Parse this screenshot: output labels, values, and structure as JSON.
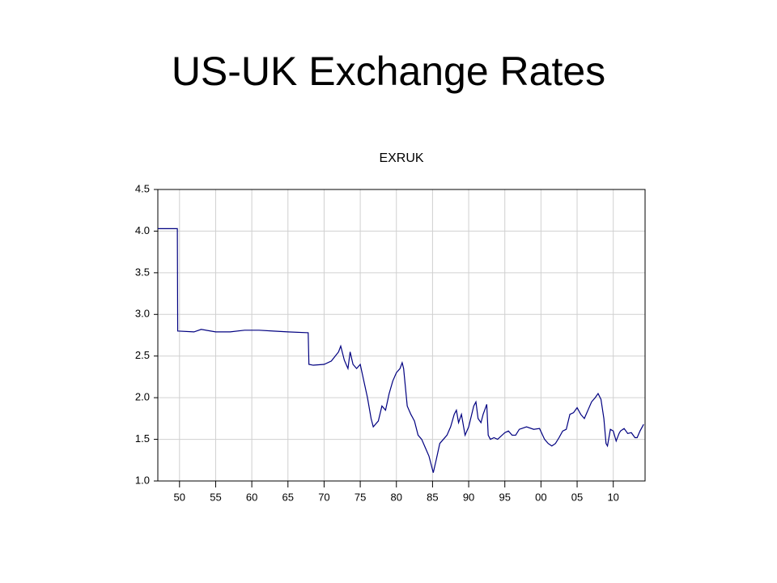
{
  "slide": {
    "title": "US-UK Exchange Rates"
  },
  "chart_data": {
    "type": "line",
    "title": "EXRUK",
    "x": [
      1947.0,
      1949.7,
      1949.75,
      1952,
      1953,
      1955,
      1957,
      1959,
      1961,
      1963,
      1965,
      1967.8,
      1967.9,
      1968.5,
      1970,
      1971,
      1972,
      1972.3,
      1972.8,
      1973.3,
      1973.6,
      1974,
      1974.5,
      1975,
      1975.5,
      1976,
      1976.5,
      1976.8,
      1977.5,
      1978,
      1978.5,
      1979,
      1979.5,
      1980,
      1980.5,
      1980.8,
      1981,
      1981.5,
      1982,
      1982.5,
      1983,
      1983.5,
      1984,
      1984.5,
      1985.1,
      1985.5,
      1986,
      1986.5,
      1987,
      1987.5,
      1988,
      1988.3,
      1988.6,
      1989,
      1989.5,
      1990,
      1990.7,
      1991,
      1991.3,
      1991.7,
      1992,
      1992.5,
      1992.7,
      1993,
      1993.5,
      1994,
      1995,
      1995.5,
      1996,
      1996.5,
      1997,
      1998,
      1999,
      1999.8,
      2000.5,
      2001,
      2001.5,
      2002,
      2002.5,
      2003,
      2003.5,
      2004,
      2004.5,
      2005,
      2005.5,
      2006,
      2006.5,
      2007,
      2007.5,
      2007.9,
      2008.3,
      2008.7,
      2009,
      2009.2,
      2009.6,
      2010,
      2010.4,
      2010.8,
      2011,
      2011.5,
      2012,
      2012.5,
      2013,
      2013.3,
      2013.7,
      2014.2
    ],
    "series": [
      {
        "name": "EXRUK",
        "color": "#000080",
        "values": [
          4.03,
          4.03,
          2.8,
          2.79,
          2.82,
          2.79,
          2.79,
          2.81,
          2.81,
          2.8,
          2.79,
          2.78,
          2.4,
          2.39,
          2.4,
          2.44,
          2.55,
          2.62,
          2.45,
          2.35,
          2.55,
          2.4,
          2.35,
          2.4,
          2.2,
          2.0,
          1.75,
          1.65,
          1.72,
          1.9,
          1.85,
          2.05,
          2.2,
          2.3,
          2.35,
          2.42,
          2.35,
          1.9,
          1.8,
          1.72,
          1.55,
          1.5,
          1.4,
          1.3,
          1.1,
          1.25,
          1.45,
          1.5,
          1.55,
          1.65,
          1.8,
          1.85,
          1.7,
          1.8,
          1.55,
          1.65,
          1.9,
          1.95,
          1.75,
          1.7,
          1.8,
          1.92,
          1.55,
          1.5,
          1.52,
          1.5,
          1.58,
          1.6,
          1.55,
          1.55,
          1.62,
          1.65,
          1.62,
          1.63,
          1.5,
          1.45,
          1.42,
          1.45,
          1.52,
          1.6,
          1.62,
          1.8,
          1.82,
          1.88,
          1.8,
          1.75,
          1.85,
          1.95,
          2.0,
          2.05,
          1.98,
          1.75,
          1.45,
          1.42,
          1.62,
          1.6,
          1.48,
          1.57,
          1.6,
          1.63,
          1.57,
          1.58,
          1.52,
          1.52,
          1.6,
          1.68
        ]
      }
    ],
    "xlim": [
      1947,
      2014.4
    ],
    "xticks": [
      {
        "value": 1950,
        "label": "50"
      },
      {
        "value": 1955,
        "label": "55"
      },
      {
        "value": 1960,
        "label": "60"
      },
      {
        "value": 1965,
        "label": "65"
      },
      {
        "value": 1970,
        "label": "70"
      },
      {
        "value": 1975,
        "label": "75"
      },
      {
        "value": 1980,
        "label": "80"
      },
      {
        "value": 1985,
        "label": "85"
      },
      {
        "value": 1990,
        "label": "90"
      },
      {
        "value": 1995,
        "label": "95"
      },
      {
        "value": 2000,
        "label": "00"
      },
      {
        "value": 2005,
        "label": "05"
      },
      {
        "value": 2010,
        "label": "10"
      }
    ],
    "ylim": [
      1,
      4.5
    ],
    "yticks": [
      {
        "value": 1,
        "label": "1.0"
      },
      1.5,
      {
        "value": 2,
        "label": "2.0"
      },
      2.5,
      {
        "value": 3,
        "label": "3.0"
      },
      3.5,
      {
        "value": 4,
        "label": "4.0"
      },
      4.5
    ],
    "grid": true
  }
}
